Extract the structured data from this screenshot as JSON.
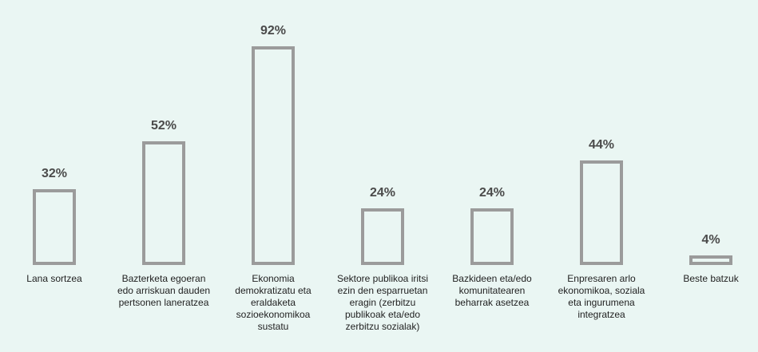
{
  "chart_data": {
    "type": "bar",
    "categories": [
      "Lana sortzea",
      "Bazterketa egoeran edo arriskuan dauden pertsonen laneratzea",
      "Ekonomia demokratizatu eta eraldaketa sozioekonomikoa sustatu",
      "Sektore publikoa iritsi ezin den esparruetan eragin (zerbitzu publikoak eta/edo zerbitzu sozialak)",
      "Bazkideen eta/edo komunitatearen beharrak asetzea",
      "Enpresaren arlo ekonomikoa, soziala eta ingurumena integratzea",
      "Beste batzuk"
    ],
    "values": [
      32,
      52,
      92,
      24,
      24,
      44,
      4
    ],
    "value_labels": [
      "32%",
      "52%",
      "92%",
      "24%",
      "24%",
      "44%",
      "4%"
    ],
    "color": "#9b9b9b"
  }
}
